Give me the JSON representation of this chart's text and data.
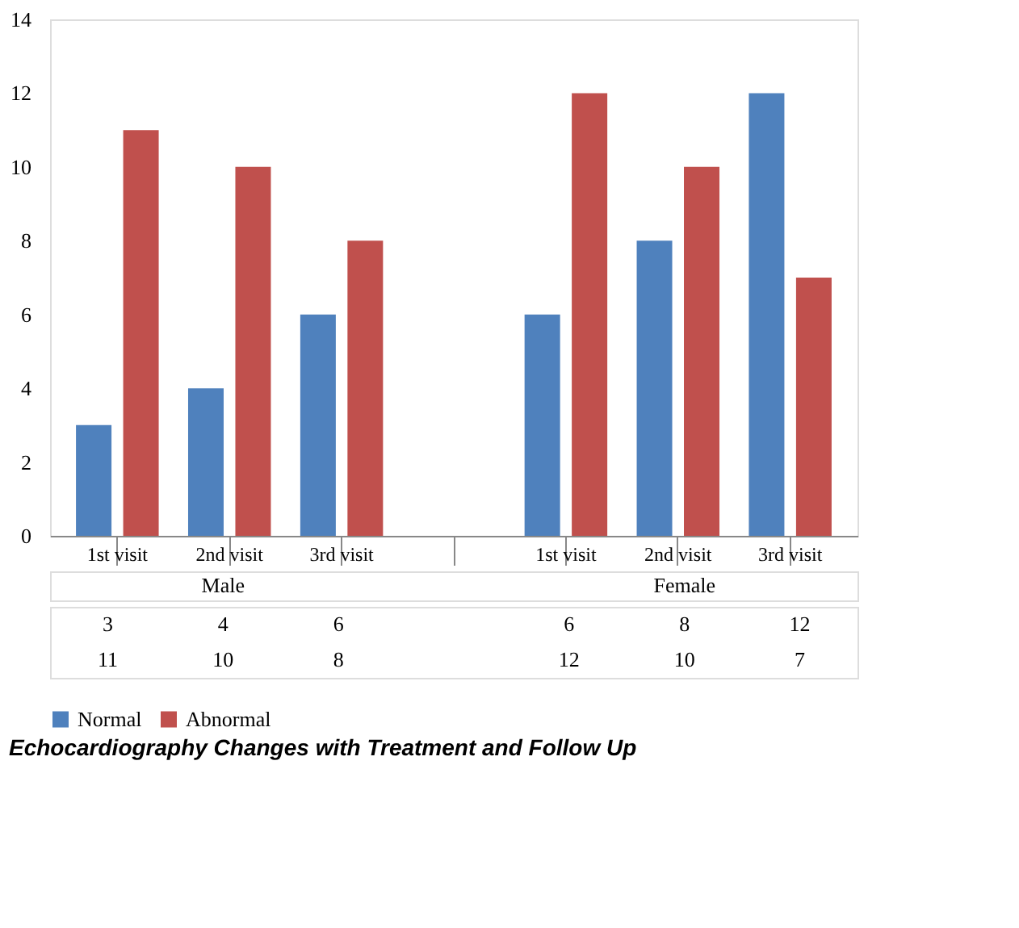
{
  "chart_data": {
    "type": "bar",
    "title": "Echocardiography Changes with Treatment and Follow Up",
    "categories": [
      "1st visit",
      "2nd visit",
      "3rd visit",
      null,
      "1st visit",
      "2nd visit",
      "3rd visit"
    ],
    "series": [
      {
        "name": "Normal",
        "color": "#4f81bd",
        "values": [
          3,
          4,
          6,
          null,
          6,
          8,
          12
        ]
      },
      {
        "name": "Abnormal",
        "color": "#c0504d",
        "values": [
          11,
          10,
          8,
          null,
          12,
          10,
          7
        ]
      }
    ],
    "annotations": [
      "Male",
      "Female"
    ],
    "ylim": [
      0,
      14
    ],
    "yticks": [
      0,
      2,
      4,
      6,
      8,
      10,
      12,
      14
    ],
    "grid": false,
    "legend": "bottom",
    "data_labels": true
  }
}
